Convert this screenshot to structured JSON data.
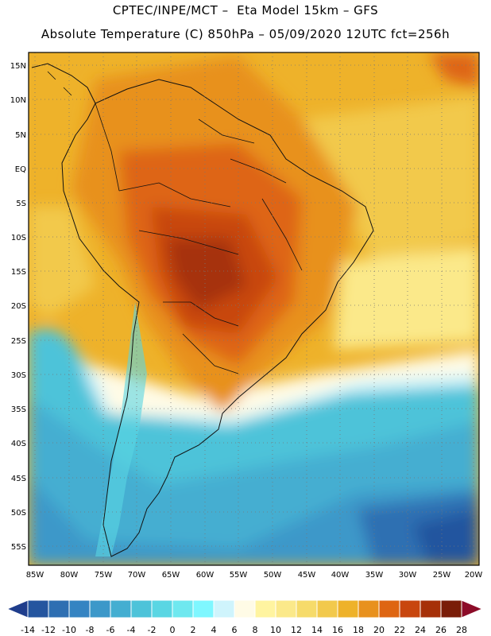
{
  "header": {
    "line1": "CPTEC/INPE/MCT –  Eta Model 15km – GFS",
    "line2": "Absolute Temperature (C) 850hPa – 05/09/2020 12UTC fct=256h"
  },
  "map": {
    "lat_labels": [
      "15N",
      "10N",
      "5N",
      "EQ",
      "5S",
      "10S",
      "15S",
      "20S",
      "25S",
      "30S",
      "35S",
      "40S",
      "45S",
      "50S",
      "55S"
    ],
    "lon_labels": [
      "85W",
      "80W",
      "75W",
      "70W",
      "65W",
      "60W",
      "55W",
      "50W",
      "45W",
      "40W",
      "35W",
      "30W",
      "25W",
      "20W"
    ]
  },
  "colorbar": {
    "labels": [
      "-14",
      "-12",
      "-10",
      "-8",
      "-6",
      "-4",
      "-2",
      "0",
      "2",
      "4",
      "6",
      "8",
      "10",
      "12",
      "14",
      "16",
      "18",
      "20",
      "22",
      "24",
      "26",
      "28"
    ],
    "colors": [
      "#1f3d8c",
      "#24559f",
      "#2e6fb2",
      "#3584c2",
      "#3c98c9",
      "#44aed1",
      "#4dc3d9",
      "#5ad6e3",
      "#6fe8ef",
      "#7ff7ff",
      "#cff4fc",
      "#fffbe6",
      "#fff4a0",
      "#fbe98a",
      "#f6db6a",
      "#f2c94c",
      "#eeb22a",
      "#e8911e",
      "#de6512",
      "#c8460e",
      "#a63008",
      "#7a1d08",
      "#8c0c28"
    ]
  }
}
